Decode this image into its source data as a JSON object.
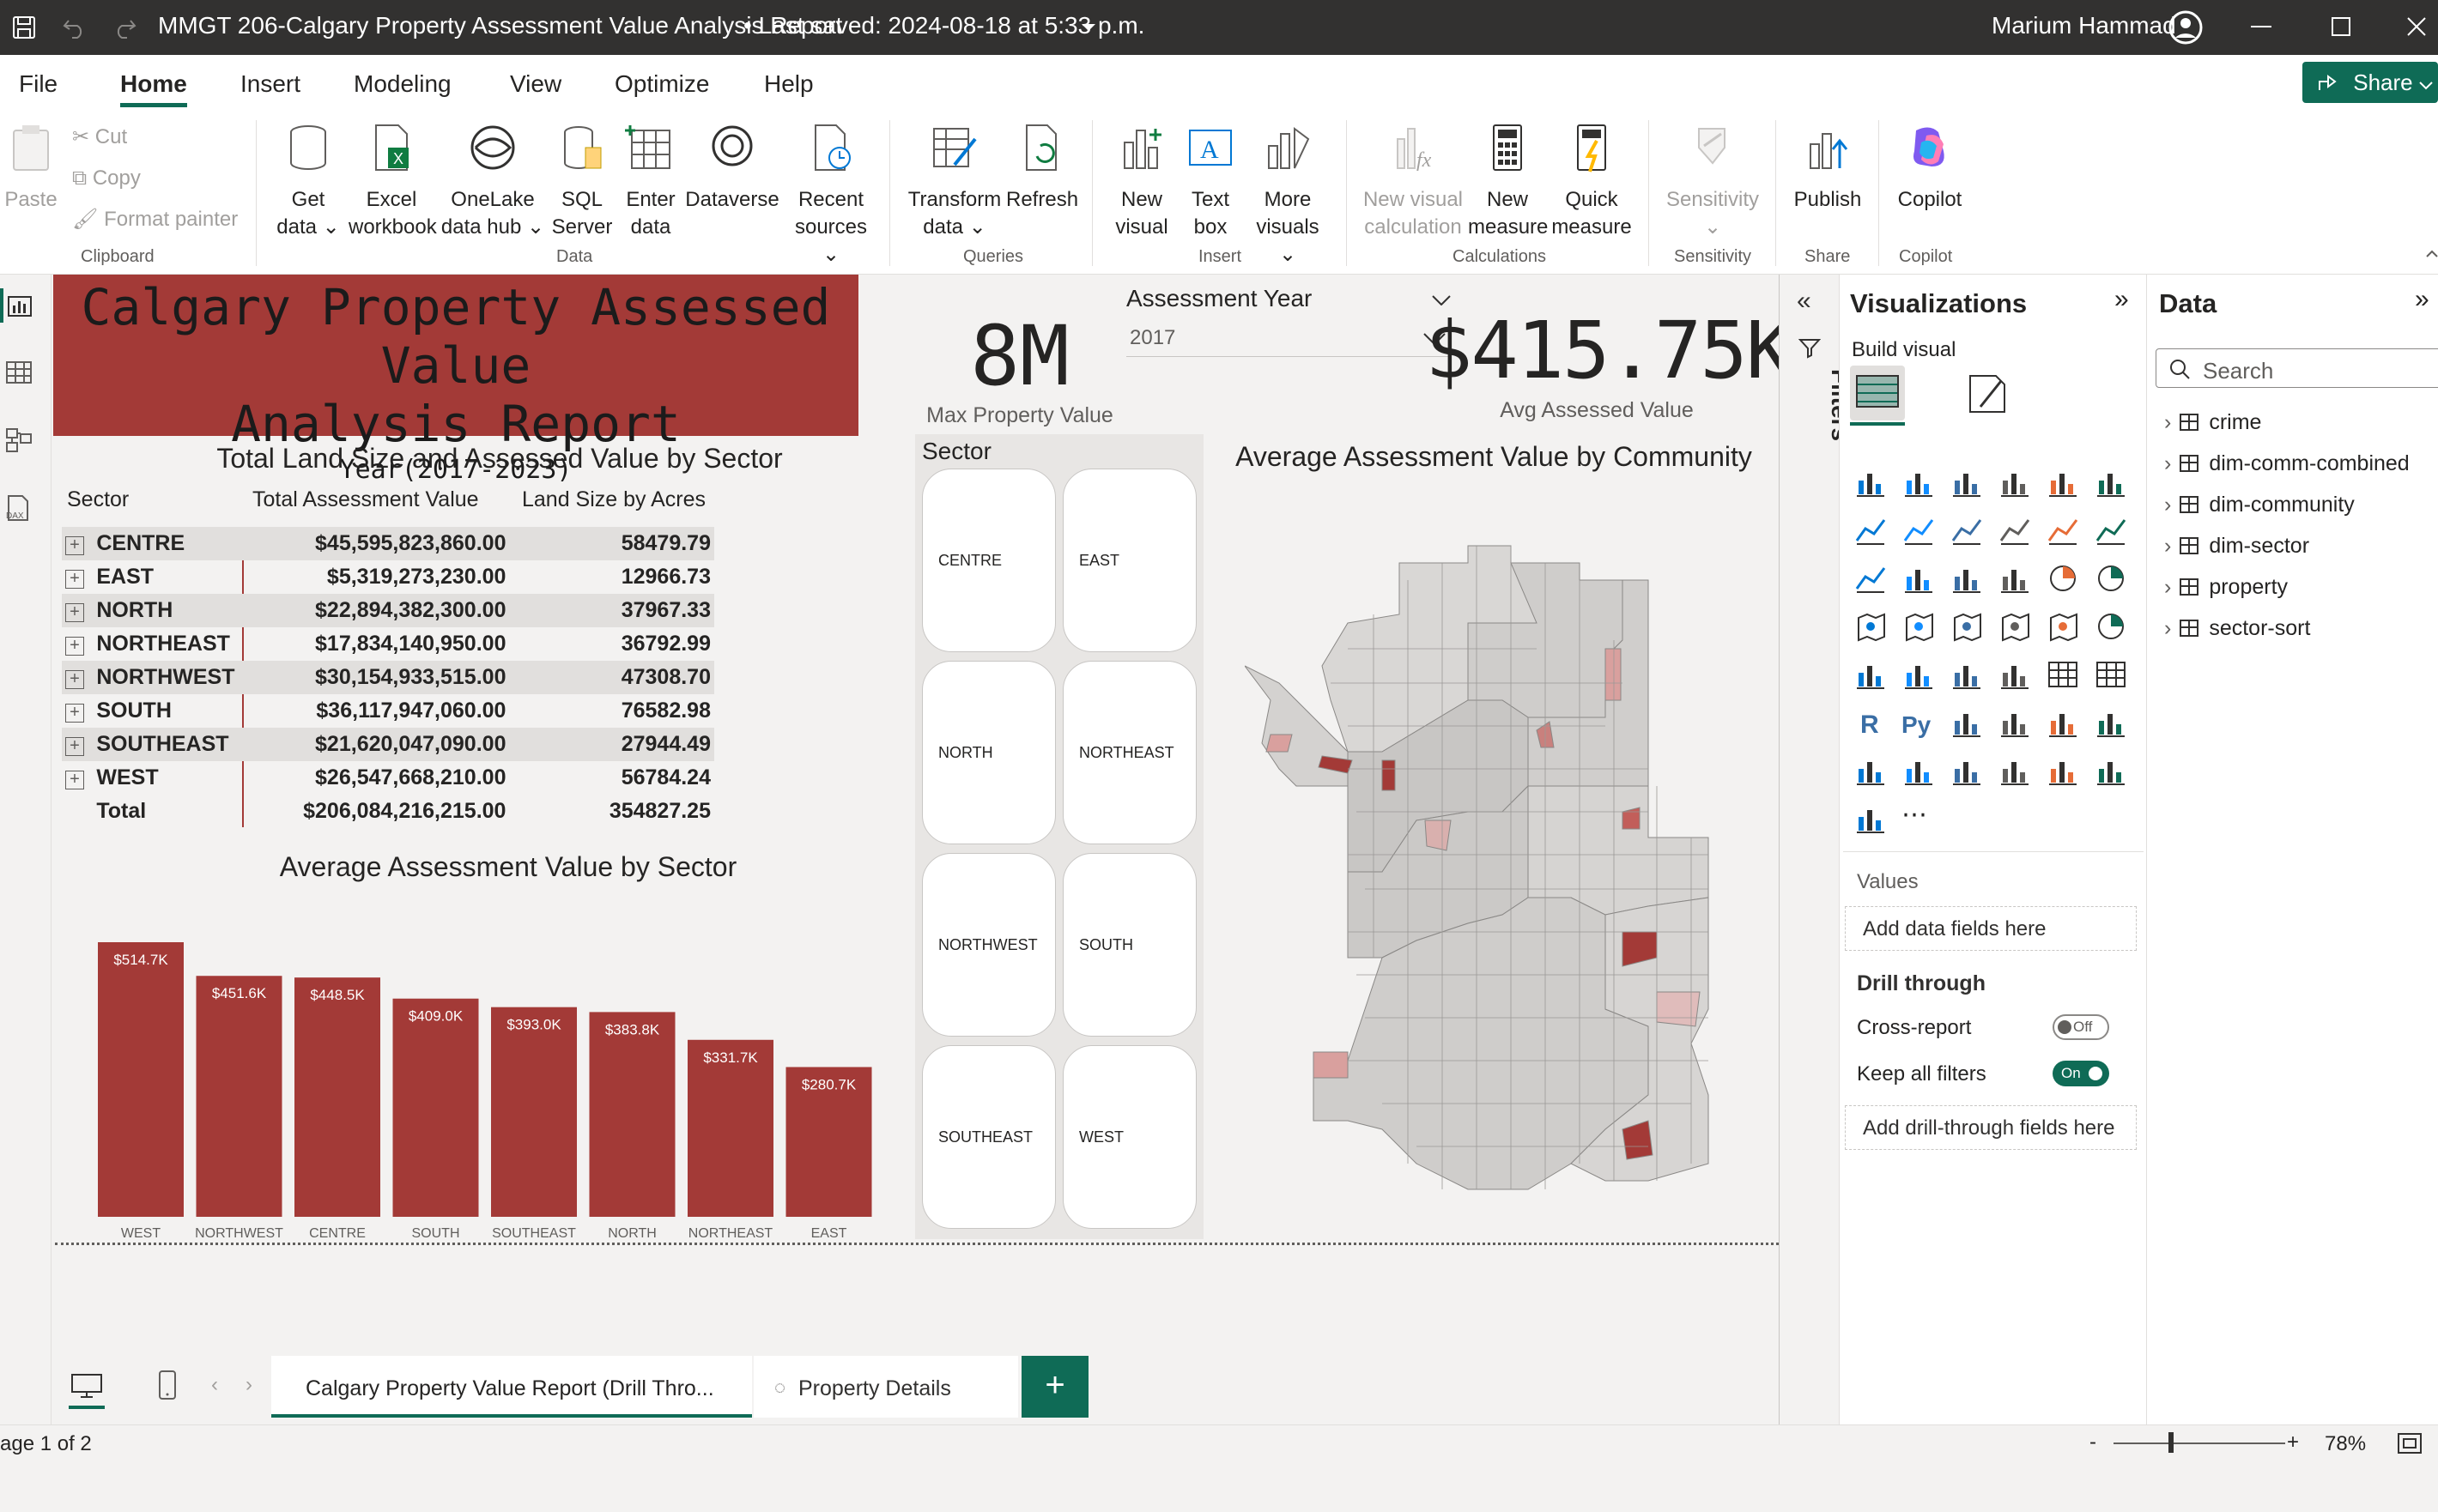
{
  "titlebar": {
    "document_title": "MMGT 206-Calgary Property Assessment Value Analysis Report",
    "last_saved": "• Last saved: 2024-08-18 at 5:33 p.m.",
    "user_name": "Marium Hammad"
  },
  "menu": {
    "file": "File",
    "home": "Home",
    "insert": "Insert",
    "modeling": "Modeling",
    "view": "View",
    "optimize": "Optimize",
    "help": "Help",
    "share": "Share"
  },
  "ribbon": {
    "paste": "Paste",
    "cut": "Cut",
    "copy": "Copy",
    "format_painter": "Format painter",
    "get_data": [
      "Get",
      "data"
    ],
    "excel": [
      "Excel",
      "workbook"
    ],
    "onelake": [
      "OneLake",
      "data hub"
    ],
    "sql": [
      "SQL",
      "Server"
    ],
    "enter_data": [
      "Enter",
      "data"
    ],
    "dataverse": "Dataverse",
    "recent": [
      "Recent",
      "sources"
    ],
    "transform": [
      "Transform",
      "data"
    ],
    "refresh": "Refresh",
    "new_visual": [
      "New",
      "visual"
    ],
    "text_box": [
      "Text",
      "box"
    ],
    "more_visuals": [
      "More",
      "visuals"
    ],
    "new_visual_calc": [
      "New visual",
      "calculation"
    ],
    "new_measure": [
      "New",
      "measure"
    ],
    "quick_measure": [
      "Quick",
      "measure"
    ],
    "sensitivity": "Sensitivity",
    "publish": "Publish",
    "copilot": "Copilot",
    "groups": {
      "clipboard": "Clipboard",
      "data": "Data",
      "queries": "Queries",
      "insert": "Insert",
      "calculations": "Calculations",
      "sensitivity": "Sensitivity",
      "share": "Share",
      "copilot": "Copilot"
    }
  },
  "report": {
    "title_line1": "Calgary Property Assessed Value",
    "title_line2": "Analysis Report",
    "subtitle": "Year(2017-2023)",
    "kpi_max_value": "8M",
    "kpi_max_label": "Max Property Value",
    "slicer_year_title": "Assessment Year",
    "slicer_year_value": "2017",
    "kpi_avg_value": "$415.75K",
    "kpi_avg_label": "Avg Assessed Value",
    "matrix": {
      "title": "Total Land Size and Assessed Value by Sector",
      "headers": [
        "Sector",
        "Total Assessment Value",
        "Land Size by Acres"
      ],
      "rows": [
        {
          "sector": "CENTRE",
          "value": "$45,595,823,860.00",
          "acres": "58479.79"
        },
        {
          "sector": "EAST",
          "value": "$5,319,273,230.00",
          "acres": "12966.73"
        },
        {
          "sector": "NORTH",
          "value": "$22,894,382,300.00",
          "acres": "37967.33"
        },
        {
          "sector": "NORTHEAST",
          "value": "$17,834,140,950.00",
          "acres": "36792.99"
        },
        {
          "sector": "NORTHWEST",
          "value": "$30,154,933,515.00",
          "acres": "47308.70"
        },
        {
          "sector": "SOUTH",
          "value": "$36,117,947,060.00",
          "acres": "76582.98"
        },
        {
          "sector": "SOUTHEAST",
          "value": "$21,620,047,090.00",
          "acres": "27944.49"
        },
        {
          "sector": "WEST",
          "value": "$26,547,668,210.00",
          "acres": "56784.24"
        }
      ],
      "total_label": "Total",
      "total_value": "$206,084,216,215.00",
      "total_acres": "354827.25"
    },
    "sector_slicer": {
      "title": "Sector",
      "options": [
        "CENTRE",
        "EAST",
        "NORTH",
        "NORTHEAST",
        "NORTHWEST",
        "SOUTH",
        "SOUTHEAST",
        "WEST"
      ]
    },
    "map_title": "Average Assessment Value by Community"
  },
  "chart_data": {
    "type": "bar",
    "title": "Average Assessment Value by Sector",
    "categories": [
      "WEST",
      "NORTHWEST",
      "CENTRE",
      "SOUTH",
      "SOUTHEAST",
      "NORTH",
      "NORTHEAST",
      "EAST"
    ],
    "values": [
      514.7,
      451.6,
      448.5,
      409.0,
      393.0,
      383.8,
      331.7,
      280.7
    ],
    "labels": [
      "$514.7K",
      "$451.6K",
      "$448.5K",
      "$409.0K",
      "$393.0K",
      "$383.8K",
      "$331.7K",
      "$280.7K"
    ],
    "unit": "K$",
    "ylim": [
      0,
      514.7
    ],
    "color": "#a33a37"
  },
  "page_tabs": {
    "tab1": "Calgary Property Value Report (Drill Thro...",
    "tab2": "Property Details",
    "add": "+"
  },
  "status": {
    "page": "age 1 of 2",
    "zoom": "78%",
    "minus": "-",
    "plus": "+"
  },
  "filters_pane": {
    "label": "Filters"
  },
  "visualizations": {
    "title": "Visualizations",
    "build_visual": "Build visual",
    "values_label": "Values",
    "values_placeholder": "Add data fields here",
    "drill_through": "Drill through",
    "cross_report": "Cross-report",
    "cross_report_state": "Off",
    "keep_filters": "Keep all filters",
    "keep_filters_state": "On",
    "drill_placeholder": "Add drill-through fields here",
    "more": "⋯"
  },
  "data_pane": {
    "title": "Data",
    "search_placeholder": "Search",
    "tables": [
      "crime",
      "dim-comm-combined",
      "dim-community",
      "dim-sector",
      "property",
      "sector-sort"
    ]
  },
  "colors": {
    "accent_red": "#a33a37",
    "title_bar": "#323130",
    "share_green": "#0f6b56"
  }
}
